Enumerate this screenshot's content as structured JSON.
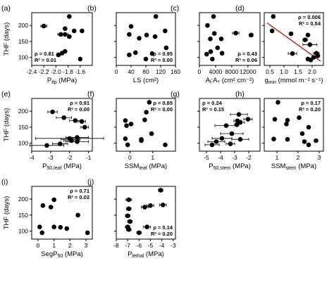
{
  "figure": {
    "ylabel": "THF (days)",
    "panels": [
      {
        "tag": "(a)",
        "xlabel": "P",
        "xlabel_sub": "tlp",
        "xlabel_unit": " (MPa)",
        "stat1": "ρ = 0.81",
        "stat2": "R² = 0.01"
      },
      {
        "tag": "(b)",
        "xlabel": "LS (cm²)",
        "xlabel_sub": "",
        "xlabel_unit": "",
        "stat1": "ρ = 0.95",
        "stat2": "R² = 0.00"
      },
      {
        "tag": "(c)",
        "xlabel": "A",
        "xlabel_sub": "l",
        "xlabel_unit": ":Aₛ (cm² cm⁻²)",
        "stat1": "ρ = 0.43",
        "stat2": "R² = 0.06"
      },
      {
        "tag": "(d)",
        "xlabel": "g",
        "xlabel_sub": "min",
        "xlabel_unit": " (mmol m⁻² s⁻¹)",
        "stat1": "ρ = 0.006",
        "stat2": "R² = 0.54"
      },
      {
        "tag": "(e)",
        "xlabel": "P",
        "xlabel_sub": "50,leaf",
        "xlabel_unit": " (MPa)",
        "stat1": "ρ = 0.91",
        "stat2": "R² = 0.00"
      },
      {
        "tag": "(f)",
        "xlabel": "SSM",
        "xlabel_sub": "leaf",
        "xlabel_unit": " (MPa)",
        "stat1": "ρ = 0.85",
        "stat2": "R² = 0.00"
      },
      {
        "tag": "(g)",
        "xlabel": "P",
        "xlabel_sub": "50,stem",
        "xlabel_unit": " (MPa)",
        "stat1": "ρ = 0.24",
        "stat2": "R² = 0.15"
      },
      {
        "tag": "(h)",
        "xlabel": "SSM",
        "xlabel_sub": "stem",
        "xlabel_unit": " (MPa)",
        "stat1": "ρ = 0.17",
        "stat2": "R² = 0.20"
      },
      {
        "tag": "(i)",
        "xlabel": "SegP",
        "xlabel_sub": "50",
        "xlabel_unit": " (MPa)",
        "stat1": "ρ = 0.71",
        "stat2": "R² = 0.02"
      },
      {
        "tag": "(j)",
        "xlabel": "P",
        "xlabel_sub": "lethal",
        "xlabel_unit": " (MPa)",
        "stat1": "ρ = 0.14",
        "stat2": "R² = 0.20"
      }
    ]
  },
  "chart_data": [
    {
      "type": "scatter",
      "tag": "(a)",
      "xlabel": "Ptlp (MPa)",
      "ylabel": "THF (days)",
      "xlim": [
        -2.4,
        -1.4
      ],
      "ylim": [
        75,
        240
      ],
      "xticks": [
        -2.4,
        -2.2,
        -2.0,
        -1.8,
        -1.6
      ],
      "xticklabels": [
        "-2.4",
        "-2.2",
        "-2.0",
        "-1.8",
        "-1.6"
      ],
      "yticks": [
        100,
        150,
        200
      ],
      "yticklabels": [
        "100",
        "150",
        "200"
      ],
      "stat_position": "bottom-left",
      "points": [
        {
          "x": -2.2,
          "y": 198,
          "xerr": 0.05
        },
        {
          "x": -1.78,
          "y": 228
        },
        {
          "x": -1.85,
          "y": 190
        },
        {
          "x": -1.7,
          "y": 183
        },
        {
          "x": -1.57,
          "y": 183
        },
        {
          "x": -1.92,
          "y": 172,
          "xerr": 0.05
        },
        {
          "x": -1.85,
          "y": 172,
          "xerr": 0.05
        },
        {
          "x": -1.78,
          "y": 165
        },
        {
          "x": -1.85,
          "y": 119
        },
        {
          "x": -1.9,
          "y": 113
        },
        {
          "x": -1.96,
          "y": 108
        },
        {
          "x": -1.6,
          "y": 95
        }
      ]
    },
    {
      "type": "scatter",
      "tag": "(b)",
      "xlabel": "LS (cm²)",
      "ylabel": "THF (days)",
      "xlim": [
        0,
        160
      ],
      "ylim": [
        75,
        240
      ],
      "xticks": [
        0,
        40,
        80,
        120,
        160
      ],
      "xticklabels": [
        "0",
        "40",
        "80",
        "120",
        "160"
      ],
      "yticks": [
        100,
        150,
        200
      ],
      "yticklabels": [
        "",
        "",
        ""
      ],
      "stat_position": "bottom-right",
      "points": [
        {
          "x": 107,
          "y": 228
        },
        {
          "x": 40,
          "y": 197
        },
        {
          "x": 132,
          "y": 183
        },
        {
          "x": 35,
          "y": 172
        },
        {
          "x": 82,
          "y": 170
        },
        {
          "x": 105,
          "y": 165
        },
        {
          "x": 62,
          "y": 160
        },
        {
          "x": 135,
          "y": 130
        },
        {
          "x": 52,
          "y": 115
        },
        {
          "x": 97,
          "y": 112
        },
        {
          "x": 35,
          "y": 108
        },
        {
          "x": 80,
          "y": 95
        }
      ]
    },
    {
      "type": "scatter",
      "tag": "(c)",
      "xlabel": "Al:As (cm² cm⁻²)",
      "ylabel": "THF (days)",
      "xlim": [
        0,
        15000
      ],
      "ylim": [
        75,
        240
      ],
      "xticks": [
        0,
        4000,
        8000,
        12000
      ],
      "xticklabels": [
        "0",
        "4000",
        "8000",
        "12000"
      ],
      "yticks": [
        100,
        150,
        200
      ],
      "yticklabels": [
        "",
        "",
        ""
      ],
      "stat_position": "bottom-right",
      "points": [
        {
          "x": 3500,
          "y": 228
        },
        {
          "x": 2000,
          "y": 200
        },
        {
          "x": 9000,
          "y": 176,
          "xerr": 800
        },
        {
          "x": 12800,
          "y": 170,
          "xerr": 500
        },
        {
          "x": 3700,
          "y": 175
        },
        {
          "x": 5400,
          "y": 158
        },
        {
          "x": 2700,
          "y": 158
        },
        {
          "x": 4500,
          "y": 130
        },
        {
          "x": 2800,
          "y": 118
        },
        {
          "x": 5600,
          "y": 113
        },
        {
          "x": 1800,
          "y": 110
        },
        {
          "x": 3200,
          "y": 95
        }
      ]
    },
    {
      "type": "scatter",
      "tag": "(d)",
      "xlabel": "gmin (mmol m⁻² s⁻¹)",
      "ylabel": "THF (days)",
      "xlim": [
        0.3,
        2.4
      ],
      "ylim": [
        75,
        240
      ],
      "xticks": [
        0.5,
        1.0,
        1.5,
        2.0
      ],
      "xticklabels": [
        "0.5",
        "1.0",
        "1.5",
        "2.0"
      ],
      "yticks": [
        100,
        150,
        200
      ],
      "yticklabels": [
        "",
        "",
        ""
      ],
      "stat_position": "top-right",
      "fit_line": {
        "x": [
          0.4,
          2.3
        ],
        "y": [
          208,
          88
        ]
      },
      "points": [
        {
          "x": 0.62,
          "y": 228
        },
        {
          "x": 0.58,
          "y": 183
        },
        {
          "x": 1.25,
          "y": 174
        },
        {
          "x": 1.85,
          "y": 170
        },
        {
          "x": 1.75,
          "y": 155,
          "xerr": 0.08
        },
        {
          "x": 1.92,
          "y": 140,
          "xerr": 0.25
        },
        {
          "x": 2.15,
          "y": 113,
          "xerr": 0.1
        },
        {
          "x": 1.3,
          "y": 112,
          "xerr": 0.15
        },
        {
          "x": 1.85,
          "y": 95
        },
        {
          "x": 2.05,
          "y": 100
        },
        {
          "x": 2.2,
          "y": 105
        },
        {
          "x": 1.95,
          "y": 92
        }
      ]
    },
    {
      "type": "scatter",
      "tag": "(e)",
      "xlabel": "P50,leaf (MPa)",
      "ylabel": "THF (days)",
      "xlim": [
        -4,
        -0.8
      ],
      "ylim": [
        75,
        240
      ],
      "xticks": [
        -4,
        -3,
        -2,
        -1
      ],
      "xticklabels": [
        "-4",
        "-3",
        "-2",
        "-1"
      ],
      "yticks": [
        100,
        150,
        200
      ],
      "yticklabels": [
        "100",
        "150",
        "200"
      ],
      "stat_position": "top-right",
      "points": [
        {
          "x": -2.9,
          "y": 198,
          "xerr": 0.25
        },
        {
          "x": -2.3,
          "y": 180,
          "xerr": 0.4
        },
        {
          "x": -1.7,
          "y": 171,
          "xerr": 0.3
        },
        {
          "x": -1.35,
          "y": 168,
          "xerr": 0.2
        },
        {
          "x": -1.2,
          "y": 150,
          "xerr": 0.2
        },
        {
          "x": -1.6,
          "y": 118,
          "xerr": 0.6
        },
        {
          "x": -2.0,
          "y": 115,
          "xerr": 1.8
        },
        {
          "x": -1.95,
          "y": 112,
          "xerr": 0.5
        },
        {
          "x": -1.6,
          "y": 105,
          "xerr": 0.6
        },
        {
          "x": -2.5,
          "y": 98,
          "xerr": 0.4
        },
        {
          "x": -3.2,
          "y": 93,
          "xerr": 0.9
        },
        {
          "x": -1.9,
          "y": 108,
          "xerr": 0.4
        }
      ]
    },
    {
      "type": "scatter",
      "tag": "(f)",
      "xlabel": "SSMleaf (MPa)",
      "ylabel": "THF (days)",
      "xlim": [
        -0.6,
        2.0
      ],
      "ylim": [
        75,
        240
      ],
      "xticks": [
        0,
        1
      ],
      "xticklabels": [
        "0",
        "1"
      ],
      "yticks": [
        100,
        150,
        200
      ],
      "yticklabels": [
        "",
        "",
        ""
      ],
      "stat_position": "top-right",
      "points": [
        {
          "x": 0.85,
          "y": 228
        },
        {
          "x": 0.72,
          "y": 197
        },
        {
          "x": 0.65,
          "y": 173
        },
        {
          "x": -0.2,
          "y": 171
        },
        {
          "x": -0.15,
          "y": 155
        },
        {
          "x": 0.05,
          "y": 160
        },
        {
          "x": 0.95,
          "y": 130
        },
        {
          "x": -0.2,
          "y": 114
        },
        {
          "x": 0.5,
          "y": 112
        },
        {
          "x": 0.5,
          "y": 108
        },
        {
          "x": 1.55,
          "y": 95
        },
        {
          "x": -0.1,
          "y": 95
        }
      ]
    },
    {
      "type": "scatter",
      "tag": "(g)",
      "xlabel": "P50,stem (MPa)",
      "ylabel": "THF (days)",
      "xlim": [
        -5.5,
        -1.2
      ],
      "ylim": [
        75,
        240
      ],
      "xticks": [
        -5,
        -4,
        -3,
        -2
      ],
      "xticklabels": [
        "-5",
        "-4",
        "-3",
        "-2"
      ],
      "yticks": [
        100,
        150,
        200
      ],
      "yticklabels": [
        "",
        "",
        ""
      ],
      "stat_position": "top-left",
      "points": [
        {
          "x": -2.7,
          "y": 190,
          "xerr": 0.6
        },
        {
          "x": -2.05,
          "y": 175,
          "xerr": 0.3
        },
        {
          "x": -2.8,
          "y": 170,
          "xerr": 0.25
        },
        {
          "x": -2.6,
          "y": 165,
          "xerr": 0.3
        },
        {
          "x": -2.85,
          "y": 158,
          "xerr": 0.15
        },
        {
          "x": -3.6,
          "y": 155,
          "xerr": 0.8
        },
        {
          "x": -3.2,
          "y": 130,
          "xerr": 0.8
        },
        {
          "x": -3.9,
          "y": 115,
          "xerr": 0.7
        },
        {
          "x": -2.6,
          "y": 112,
          "xerr": 0.6
        },
        {
          "x": -4.3,
          "y": 105,
          "xerr": 0.6
        },
        {
          "x": -4.6,
          "y": 95,
          "xerr": 0.5
        },
        {
          "x": -3.3,
          "y": 98,
          "xerr": 0.3
        }
      ]
    },
    {
      "type": "scatter",
      "tag": "(h)",
      "xlabel": "SSMstem (MPa)",
      "ylabel": "THF (days)",
      "xlim": [
        0.4,
        3.2
      ],
      "ylim": [
        75,
        240
      ],
      "xticks": [
        1,
        2,
        3
      ],
      "xticklabels": [
        "1",
        "2",
        "3"
      ],
      "yticks": [
        100,
        150,
        200
      ],
      "yticklabels": [
        "",
        "",
        ""
      ],
      "stat_position": "top-right",
      "points": [
        {
          "x": 1.05,
          "y": 228
        },
        {
          "x": 0.9,
          "y": 175
        },
        {
          "x": 2.05,
          "y": 180
        },
        {
          "x": 1.5,
          "y": 172
        },
        {
          "x": 1.45,
          "y": 160
        },
        {
          "x": 2.5,
          "y": 150
        },
        {
          "x": 2.2,
          "y": 130
        },
        {
          "x": 0.85,
          "y": 113
        },
        {
          "x": 1.5,
          "y": 112
        },
        {
          "x": 2.3,
          "y": 105
        },
        {
          "x": 2.85,
          "y": 108
        },
        {
          "x": 2.5,
          "y": 95
        }
      ]
    },
    {
      "type": "scatter",
      "tag": "(i)",
      "xlabel": "SegP50 (MPa)",
      "ylabel": "THF (days)",
      "xlim": [
        -0.4,
        3.4
      ],
      "ylim": [
        75,
        240
      ],
      "xticks": [
        0,
        1,
        2,
        3
      ],
      "xticklabels": [
        "0",
        "1",
        "2",
        "3"
      ],
      "yticks": [
        100,
        150,
        200
      ],
      "yticklabels": [
        "100",
        "150",
        "200"
      ],
      "stat_position": "top-right",
      "points": [
        {
          "x": 1.0,
          "y": 198
        },
        {
          "x": 0.3,
          "y": 180
        },
        {
          "x": 0.8,
          "y": 175
        },
        {
          "x": 2.5,
          "y": 150
        },
        {
          "x": 1.0,
          "y": 113
        },
        {
          "x": 1.4,
          "y": 112
        },
        {
          "x": 0.1,
          "y": 113
        },
        {
          "x": 0.25,
          "y": 95
        },
        {
          "x": 1.8,
          "y": 108
        },
        {
          "x": 3.1,
          "y": 95
        }
      ]
    },
    {
      "type": "scatter",
      "tag": "(j)",
      "xlabel": "Plethal (MPa)",
      "ylabel": "THF (days)",
      "xlim": [
        -8,
        -2.8
      ],
      "ylim": [
        75,
        240
      ],
      "xticks": [
        -8,
        -7,
        -6,
        -5,
        -4,
        -3
      ],
      "xticklabels": [
        "-8",
        "-7",
        "-6",
        "-5",
        "-4",
        "-3"
      ],
      "yticks": [
        100,
        150,
        200
      ],
      "yticklabels": [
        "",
        "",
        ""
      ],
      "stat_position": "bottom-right",
      "points": [
        {
          "x": -4.1,
          "y": 228,
          "xerr": 0.2
        },
        {
          "x": -6.9,
          "y": 198,
          "xerr": 0.25
        },
        {
          "x": -5.0,
          "y": 180,
          "xerr": 0.3
        },
        {
          "x": -3.9,
          "y": 182,
          "xerr": 0.3
        },
        {
          "x": -6.9,
          "y": 170,
          "xerr": 0.2
        },
        {
          "x": -7.0,
          "y": 148,
          "xerr": 0.2
        },
        {
          "x": -5.5,
          "y": 175,
          "xerr": 0.3
        },
        {
          "x": -6.8,
          "y": 130,
          "xerr": 0.2
        },
        {
          "x": -5.3,
          "y": 113,
          "xerr": 0.3
        },
        {
          "x": -7.0,
          "y": 113,
          "xerr": 0.2
        },
        {
          "x": -6.9,
          "y": 105,
          "xerr": 0.2
        },
        {
          "x": -6.0,
          "y": 95,
          "xerr": 0.2
        }
      ]
    }
  ]
}
